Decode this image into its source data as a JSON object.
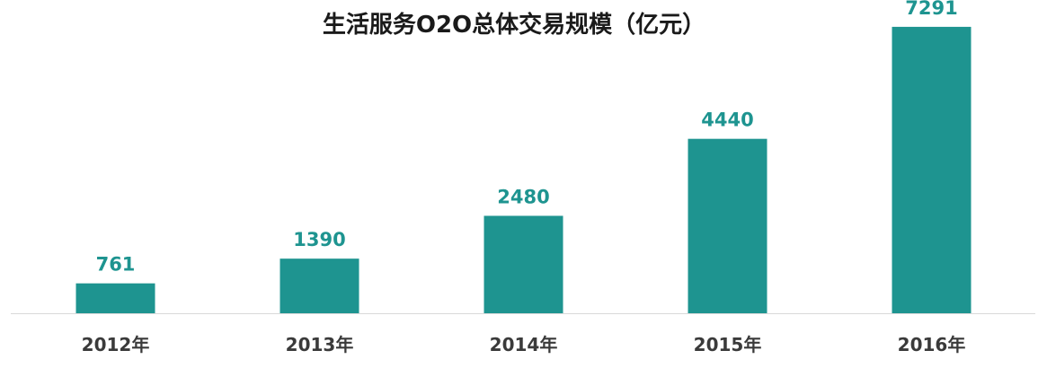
{
  "chart_data": {
    "type": "bar",
    "title": "生活服务O2O总体交易规模（亿元）",
    "categories": [
      "2012年",
      "2013年",
      "2014年",
      "2015年",
      "2016年"
    ],
    "values": [
      761,
      1390,
      2480,
      4440,
      7291
    ],
    "data_labels": [
      "761",
      "1390",
      "2480",
      "4440",
      "7291"
    ],
    "xlabel": "",
    "ylabel": "",
    "ylim": [
      0,
      7700
    ],
    "grid": false,
    "legend": "none",
    "colors": {
      "bar": "#1e9490",
      "label": "#1e9490",
      "axis": "#d9d9d9",
      "title": "#1a1a1a",
      "tick": "#3a3a3a"
    }
  }
}
